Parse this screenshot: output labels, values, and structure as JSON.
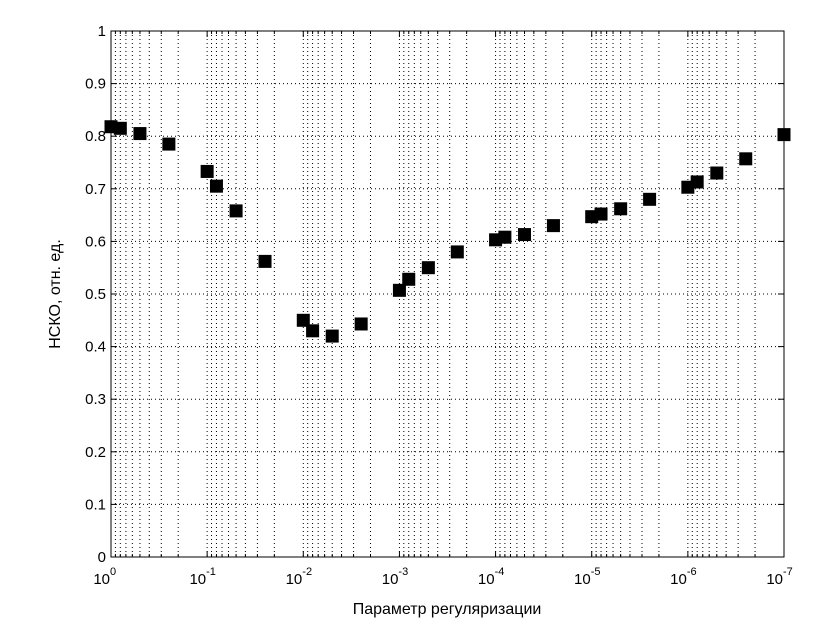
{
  "chart_data": {
    "type": "scatter",
    "xlabel": "Параметр регуляризации",
    "ylabel": "НСКО, отн. ед.",
    "xscale": "log-reversed",
    "xlim": [
      1,
      1e-07
    ],
    "ylim": [
      0,
      1
    ],
    "x_ticks": [
      {
        "value": 1,
        "base": "10",
        "exp": "0"
      },
      {
        "value": 0.1,
        "base": "10",
        "exp": "-1"
      },
      {
        "value": 0.01,
        "base": "10",
        "exp": "-2"
      },
      {
        "value": 0.001,
        "base": "10",
        "exp": "-3"
      },
      {
        "value": 0.0001,
        "base": "10",
        "exp": "-4"
      },
      {
        "value": 1e-05,
        "base": "10",
        "exp": "-5"
      },
      {
        "value": 1e-06,
        "base": "10",
        "exp": "-6"
      },
      {
        "value": 1e-07,
        "base": "10",
        "exp": "-7"
      }
    ],
    "y_ticks": [
      "0",
      "0.1",
      "0.2",
      "0.3",
      "0.4",
      "0.5",
      "0.6",
      "0.7",
      "0.8",
      "0.9",
      "1"
    ],
    "grid": true,
    "marker": "square",
    "marker_color": "#000000",
    "points": [
      {
        "x": 1,
        "y": 0.818
      },
      {
        "x": 0.8,
        "y": 0.815
      },
      {
        "x": 0.5,
        "y": 0.805
      },
      {
        "x": 0.25,
        "y": 0.785
      },
      {
        "x": 0.1,
        "y": 0.733
      },
      {
        "x": 0.08,
        "y": 0.705
      },
      {
        "x": 0.05,
        "y": 0.658
      },
      {
        "x": 0.025,
        "y": 0.562
      },
      {
        "x": 0.01,
        "y": 0.45
      },
      {
        "x": 0.008,
        "y": 0.43
      },
      {
        "x": 0.005,
        "y": 0.42
      },
      {
        "x": 0.0025,
        "y": 0.443
      },
      {
        "x": 0.001,
        "y": 0.507
      },
      {
        "x": 0.0008,
        "y": 0.528
      },
      {
        "x": 0.0005,
        "y": 0.55
      },
      {
        "x": 0.00025,
        "y": 0.58
      },
      {
        "x": 0.0001,
        "y": 0.603
      },
      {
        "x": 8e-05,
        "y": 0.608
      },
      {
        "x": 5e-05,
        "y": 0.613
      },
      {
        "x": 2.5e-05,
        "y": 0.63
      },
      {
        "x": 1e-05,
        "y": 0.647
      },
      {
        "x": 8e-06,
        "y": 0.652
      },
      {
        "x": 5e-06,
        "y": 0.662
      },
      {
        "x": 2.5e-06,
        "y": 0.68
      },
      {
        "x": 1e-06,
        "y": 0.703
      },
      {
        "x": 8e-07,
        "y": 0.713
      },
      {
        "x": 5e-07,
        "y": 0.73
      },
      {
        "x": 2.5e-07,
        "y": 0.757
      },
      {
        "x": 1e-07,
        "y": 0.803
      }
    ]
  }
}
